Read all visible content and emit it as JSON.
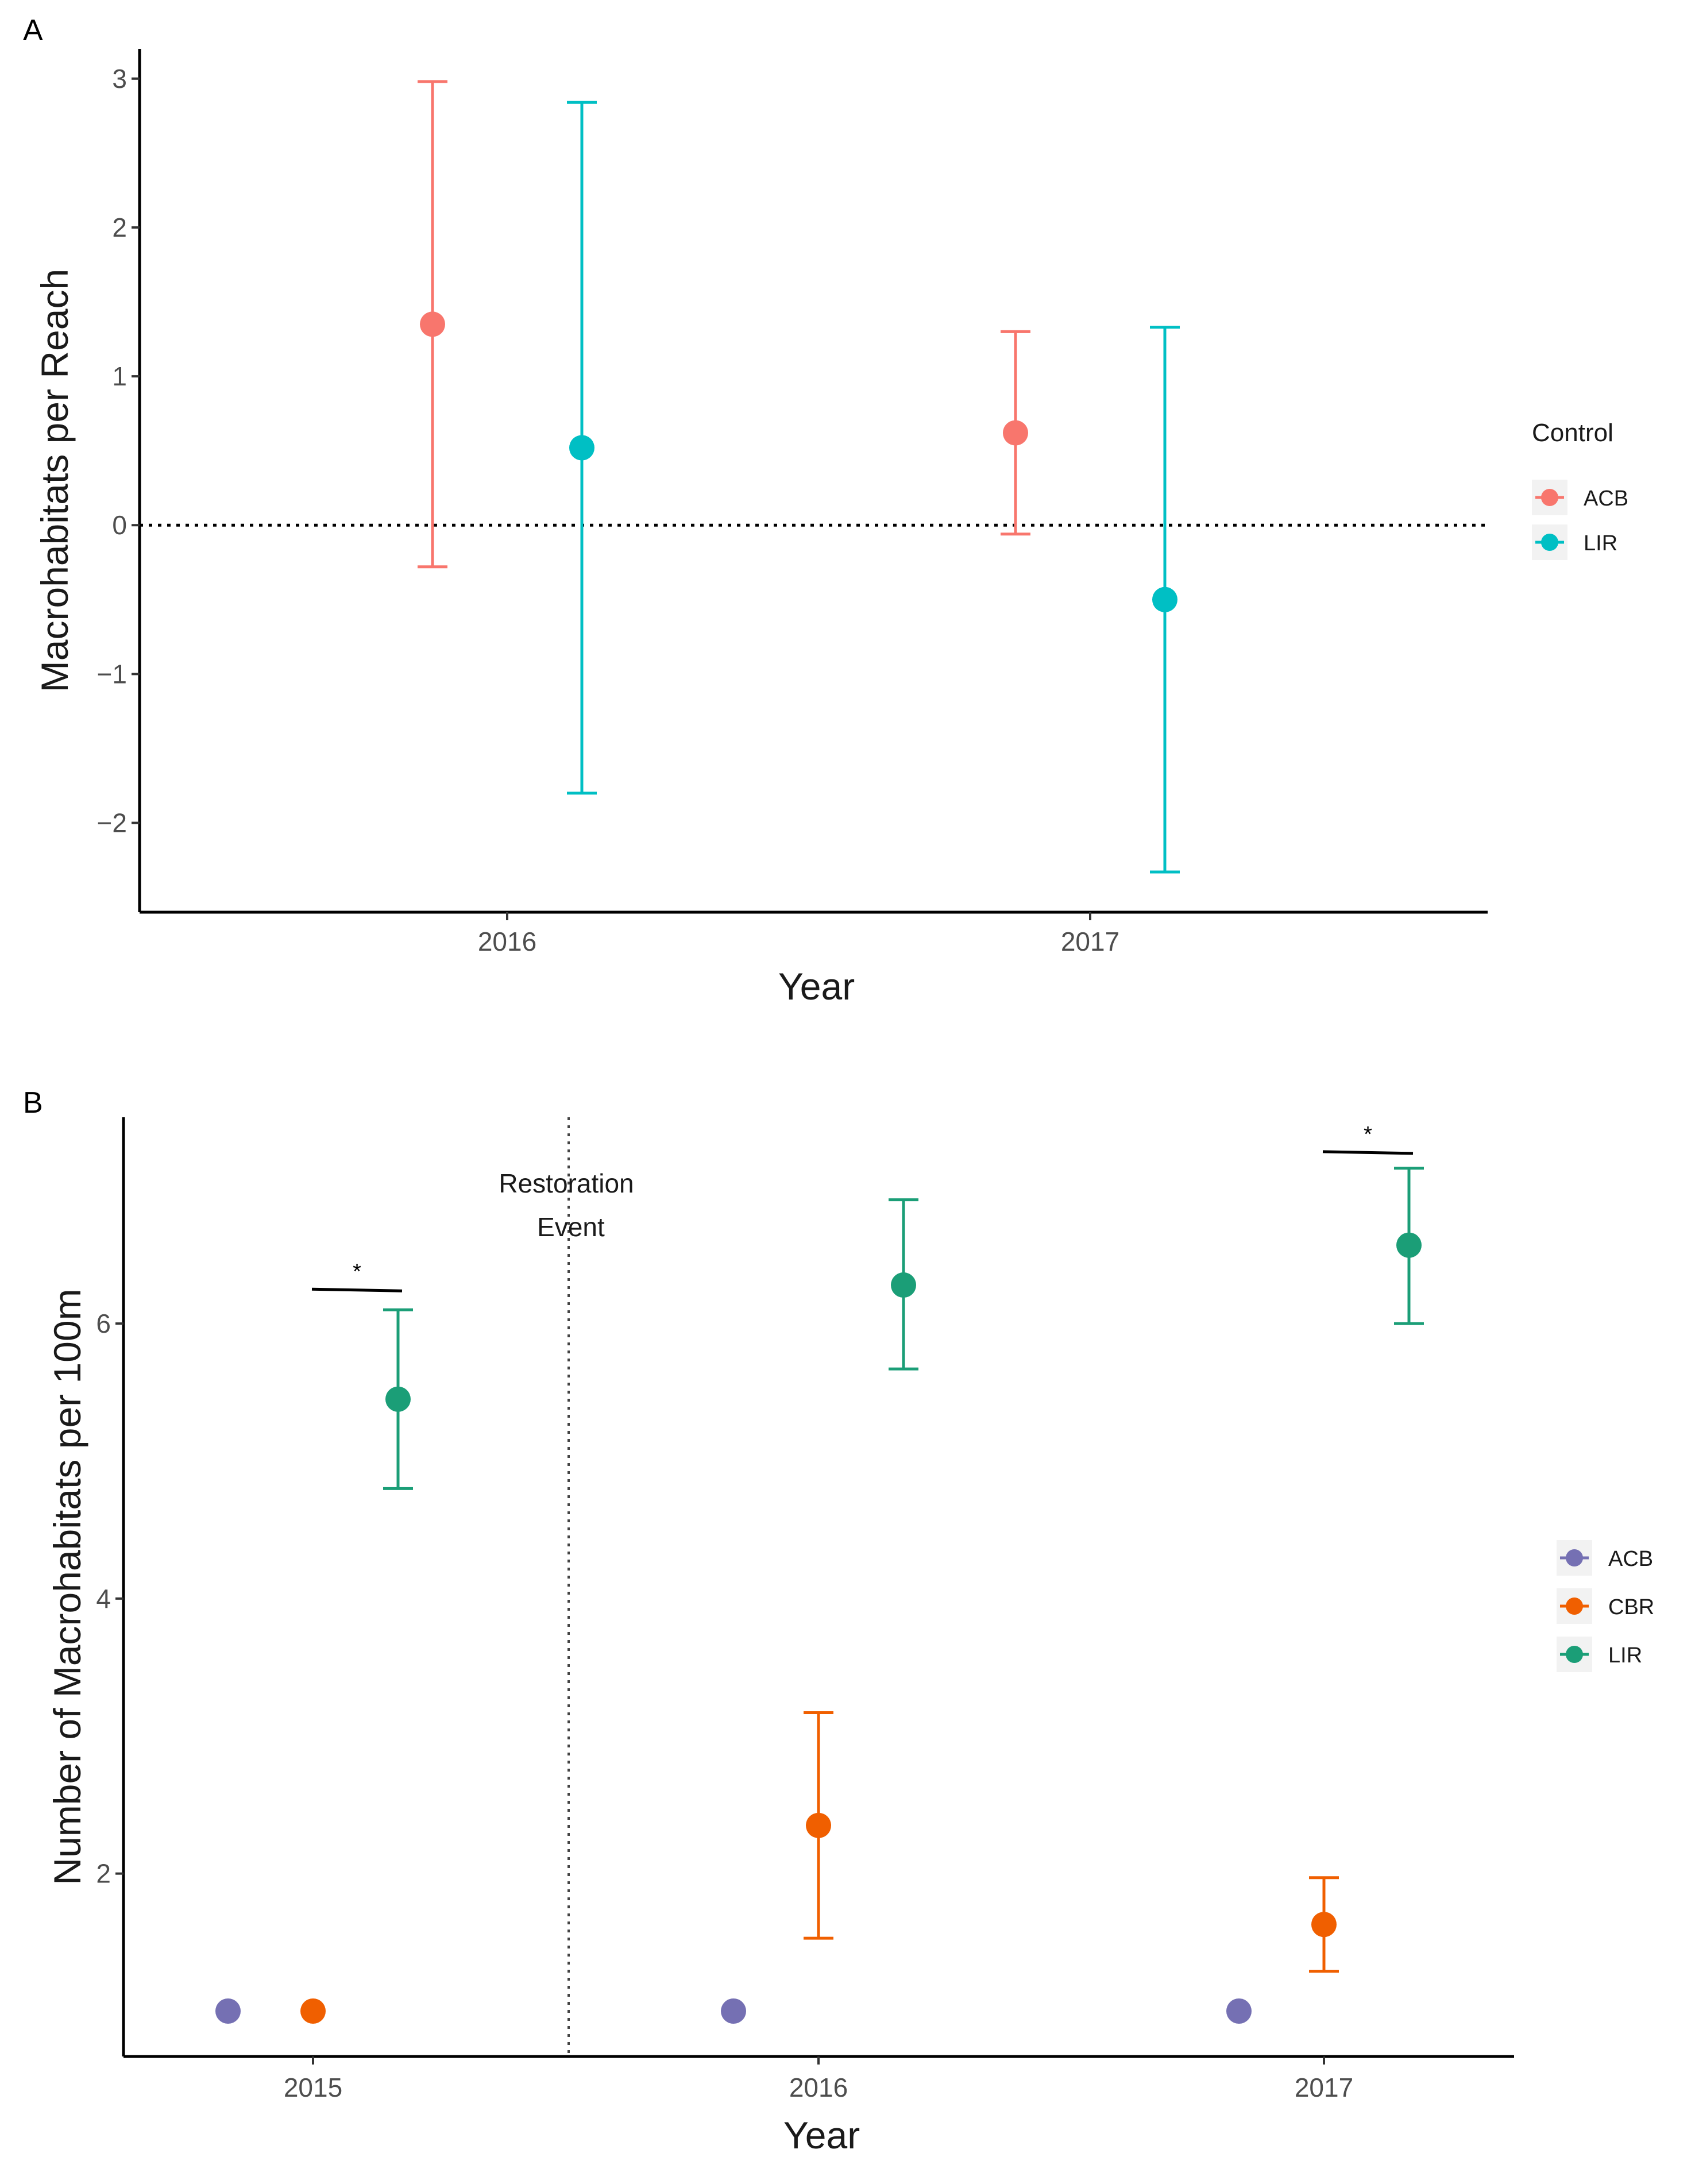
{
  "chart_data": [
    {
      "panel_label": "A",
      "type": "scatter",
      "title": "",
      "xlabel": "Year",
      "ylabel": "Macrohabitats per Reach",
      "categories": [
        "2016",
        "2017"
      ],
      "ylim": [
        -2.6,
        3.2
      ],
      "yticks": [
        -2,
        -1,
        0,
        1,
        2,
        3
      ],
      "ytick_labels": [
        "−2",
        "−1",
        "0",
        "1",
        "2",
        "3"
      ],
      "reference_line": 0,
      "legend": {
        "title": "Control",
        "position": "right",
        "entries": [
          "ACB",
          "LIR"
        ]
      },
      "series": [
        {
          "name": "ACB",
          "color": "#F8766D",
          "points": [
            {
              "x": "2016",
              "y": 1.35,
              "low": -0.28,
              "high": 2.98
            },
            {
              "x": "2017",
              "y": 0.62,
              "low": -0.06,
              "high": 1.3
            }
          ]
        },
        {
          "name": "LIR",
          "color": "#00BFC4",
          "points": [
            {
              "x": "2016",
              "y": 0.52,
              "low": -1.8,
              "high": 2.84
            },
            {
              "x": "2017",
              "y": -0.5,
              "low": -2.33,
              "high": 1.33
            }
          ]
        }
      ]
    },
    {
      "panel_label": "B",
      "type": "scatter",
      "title": "",
      "xlabel": "Year",
      "ylabel": "Number of Macrohabitats per 100m",
      "categories": [
        "2015",
        "2016",
        "2017"
      ],
      "ylim": [
        0.67,
        7.5
      ],
      "yticks": [
        2,
        4,
        6
      ],
      "ytick_labels": [
        "2",
        "4",
        "6"
      ],
      "event_line": {
        "between": [
          "2015",
          "2016"
        ],
        "label_line1": "Restoration",
        "label_line2": "Event"
      },
      "significance": [
        {
          "category": "2015",
          "y": 6.25,
          "label": "*"
        },
        {
          "category": "2017",
          "y": 7.25,
          "label": "*"
        }
      ],
      "legend": {
        "title": "",
        "position": "right",
        "entries": [
          "ACB",
          "CBR",
          "LIR"
        ]
      },
      "series": [
        {
          "name": "ACB",
          "color": "#7570B3",
          "points": [
            {
              "x": "2015",
              "y": 1.0
            },
            {
              "x": "2016",
              "y": 1.0
            },
            {
              "x": "2017",
              "y": 1.0
            }
          ]
        },
        {
          "name": "CBR",
          "color": "#F05F00",
          "points": [
            {
              "x": "2015",
              "y": 1.0
            },
            {
              "x": "2016",
              "y": 2.35,
              "low": 1.53,
              "high": 3.17
            },
            {
              "x": "2017",
              "y": 1.63,
              "low": 1.29,
              "high": 1.97
            }
          ]
        },
        {
          "name": "LIR",
          "color": "#1B9E77",
          "points": [
            {
              "x": "2015",
              "y": 5.45,
              "low": 4.8,
              "high": 6.1
            },
            {
              "x": "2016",
              "y": 6.28,
              "low": 5.67,
              "high": 6.9
            },
            {
              "x": "2017",
              "y": 6.57,
              "low": 6.0,
              "high": 7.13
            }
          ]
        }
      ]
    }
  ]
}
